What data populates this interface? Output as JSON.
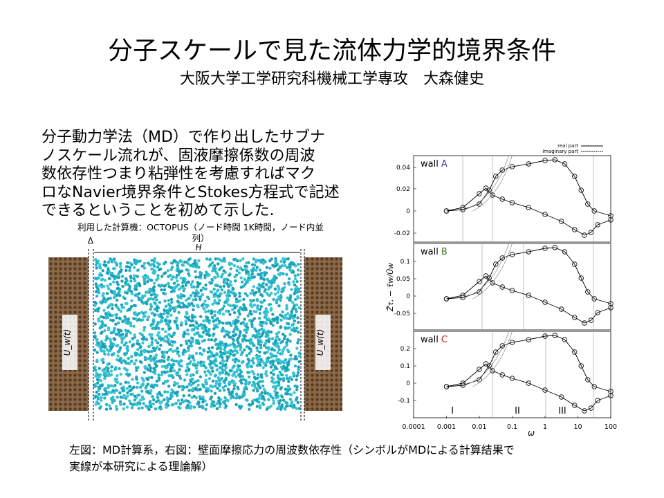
{
  "title": "分子スケールで見た流体力学的境界条件",
  "subtitle": "大阪大学工学研究科機械工学専攻　大森健史",
  "body": [
    "分子動力学法（MD）で作り出したサブナ",
    "ノスケール流れが、固液摩擦係数の周波",
    "数依存性つまり粘弾性を考慮すればマク",
    "ロなNavier境界条件とStokes方程式で記述",
    "できるということを初めて示した."
  ],
  "figure_left": {
    "caption": [
      "利用した計算機：OCTOPUS（ノード時間 1K時間，ノード内並",
      "列）"
    ],
    "delta": "Δ",
    "h": "H",
    "uw_left": "U_w(t)",
    "uw_right": "U_w(t)"
  },
  "figure_right": {
    "legend": [
      "real part",
      "imaginary part"
    ],
    "panels": [
      {
        "wall": "wall",
        "letter": "A",
        "letter_color": "#2a3f9e",
        "yticks": [
          "0.04",
          "0.02",
          "0",
          "-0.02"
        ]
      },
      {
        "wall": "wall",
        "letter": "B",
        "letter_color": "#3a7a2a",
        "yticks": [
          "0.1",
          "0.05",
          "0",
          "-0.05"
        ]
      },
      {
        "wall": "wall",
        "letter": "C",
        "letter_color": "#d02020",
        "yticks": [
          "0.2",
          "0.1",
          "0",
          "-0.1"
        ]
      }
    ],
    "regions": [
      "I",
      "II",
      "III"
    ],
    "xticks": [
      "0.0001",
      "0.001",
      "0.01",
      "0.1",
      "1",
      "10",
      "100"
    ],
    "xlabel": "ω",
    "ylabel": "Z̃τ,  − τ̃w/Ũw"
  },
  "caption": [
    "左図：MD計算系，右図：壁面摩擦応力の周波数依存性（シンボルがMDによる計算結果で",
    "実線が本研究による理論解）"
  ]
}
